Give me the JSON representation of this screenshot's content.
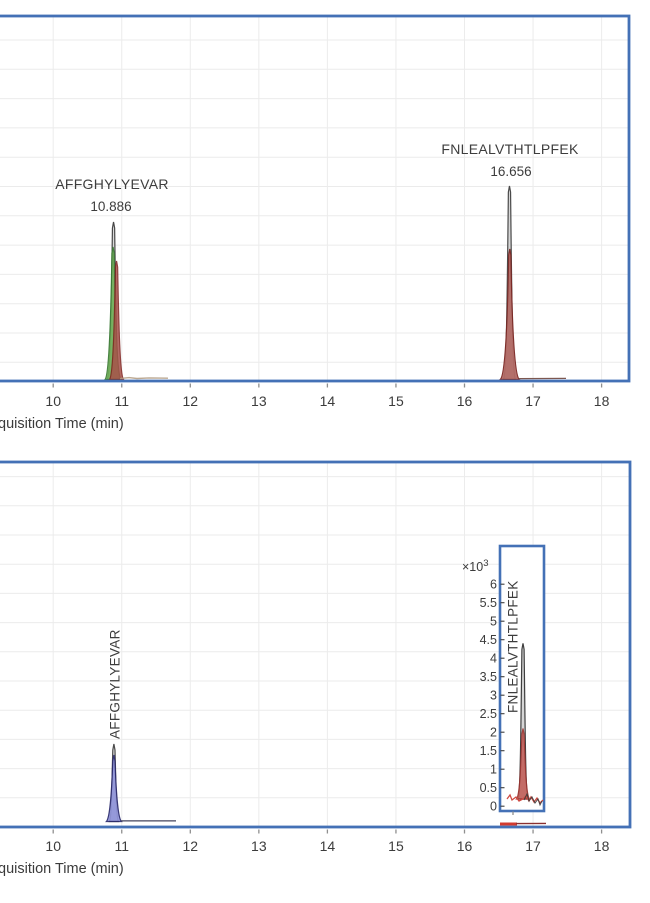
{
  "chart_data": [
    {
      "type": "chromatogram",
      "title": "",
      "xlabel": "quisition Time (min)",
      "x_ticks": [
        10,
        11,
        12,
        13,
        14,
        15,
        16,
        17,
        18
      ],
      "x_range_visible": [
        9.2,
        18.4
      ],
      "grid": true,
      "frame_color": "#4471b6",
      "peaks": [
        {
          "label": "AFFGHYLYEVAR",
          "rt_text": "10.886",
          "rt_min": 10.886,
          "trace_colors": [
            "#474747",
            "#6fae57",
            "#a8514a"
          ],
          "trace_names": [
            "outline-trace",
            "green-trace",
            "dark-red-trace"
          ]
        },
        {
          "label": "FNLEALVTHTLPFEK",
          "rt_text": "16.656",
          "rt_min": 16.656,
          "trace_colors": [
            "#4a4a4a",
            "#b26a65"
          ],
          "trace_names": [
            "gray-outline-trace",
            "dark-red-trace"
          ]
        }
      ]
    },
    {
      "type": "chromatogram",
      "title": "",
      "xlabel": "quisition Time (min)",
      "x_ticks": [
        10,
        11,
        12,
        13,
        14,
        15,
        16,
        17,
        18
      ],
      "x_range_visible": [
        9.2,
        18.4
      ],
      "grid": true,
      "frame_color": "#4471b6",
      "peaks": [
        {
          "label": "AFFGHYLYEVAR",
          "rt_min": 10.9,
          "trace_colors": [
            "#4a4a4a",
            "#9094d9"
          ],
          "trace_names": [
            "gray-outline-trace",
            "blue-trace"
          ]
        }
      ],
      "inset": {
        "label": "FNLEALVTHTLPFEK",
        "scale_base": "×10",
        "scale_exp": "3",
        "y_ticks": [
          6,
          5.5,
          5,
          4.5,
          4,
          3.5,
          3,
          2.5,
          2,
          1.5,
          1,
          0.5,
          0
        ],
        "apex_value_x1000": 4.4,
        "red_trace_apex_x1000": 2.1,
        "trace_colors": [
          "#3e3e3e",
          "#c2605a",
          "#cf4a42"
        ]
      }
    }
  ]
}
